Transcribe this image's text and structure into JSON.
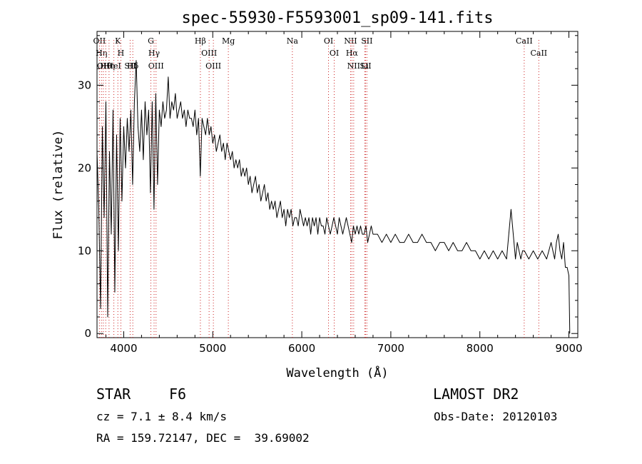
{
  "chart_data": {
    "type": "line",
    "title": "spec-55930-F5593001_sp09-141.fits",
    "xlabel": "Wavelength (Å)",
    "ylabel": "Flux (relative)",
    "xlim": [
      3700,
      9100
    ],
    "ylim": [
      -0.5,
      36.5
    ],
    "xticks": [
      4000,
      5000,
      6000,
      7000,
      8000,
      9000
    ],
    "xtick_labels": [
      "4000",
      "5000",
      "6000",
      "7000",
      "8000",
      "9000"
    ],
    "yticks": [
      0,
      10,
      20,
      30
    ],
    "ytick_labels": [
      "0",
      "10",
      "20",
      "30"
    ],
    "grid": false,
    "legend": "none",
    "series": [
      {
        "color": "#000000",
        "x": [
          3700,
          3720,
          3740,
          3760,
          3780,
          3800,
          3820,
          3840,
          3860,
          3880,
          3900,
          3920,
          3940,
          3960,
          3980,
          4000,
          4020,
          4040,
          4060,
          4080,
          4100,
          4120,
          4140,
          4160,
          4180,
          4200,
          4220,
          4240,
          4260,
          4280,
          4300,
          4320,
          4340,
          4360,
          4380,
          4400,
          4420,
          4440,
          4460,
          4480,
          4500,
          4520,
          4540,
          4560,
          4580,
          4600,
          4620,
          4640,
          4660,
          4680,
          4700,
          4720,
          4740,
          4760,
          4780,
          4800,
          4820,
          4840,
          4860,
          4880,
          4900,
          4920,
          4940,
          4960,
          4980,
          5000,
          5020,
          5040,
          5060,
          5080,
          5100,
          5120,
          5140,
          5160,
          5180,
          5200,
          5220,
          5240,
          5260,
          5280,
          5300,
          5320,
          5340,
          5360,
          5380,
          5400,
          5420,
          5440,
          5460,
          5480,
          5500,
          5520,
          5540,
          5560,
          5580,
          5600,
          5620,
          5640,
          5660,
          5680,
          5700,
          5720,
          5740,
          5760,
          5780,
          5800,
          5820,
          5840,
          5860,
          5880,
          5900,
          5920,
          5940,
          5960,
          5980,
          6000,
          6020,
          6040,
          6060,
          6080,
          6100,
          6120,
          6140,
          6160,
          6180,
          6200,
          6220,
          6240,
          6260,
          6280,
          6300,
          6320,
          6340,
          6360,
          6380,
          6400,
          6420,
          6440,
          6460,
          6480,
          6500,
          6520,
          6540,
          6560,
          6580,
          6600,
          6620,
          6640,
          6660,
          6680,
          6700,
          6720,
          6740,
          6760,
          6780,
          6800,
          6850,
          6900,
          6950,
          7000,
          7050,
          7100,
          7150,
          7200,
          7250,
          7300,
          7350,
          7400,
          7450,
          7500,
          7550,
          7600,
          7650,
          7700,
          7750,
          7800,
          7850,
          7900,
          7950,
          8000,
          8050,
          8100,
          8150,
          8200,
          8250,
          8300,
          8350,
          8400,
          8420,
          8440,
          8460,
          8480,
          8500,
          8550,
          8600,
          8650,
          8700,
          8750,
          8800,
          8820,
          8840,
          8860,
          8880,
          8900,
          8920,
          8940,
          8960,
          8980,
          9000,
          9010
        ],
        "y": [
          22,
          15,
          3,
          25,
          14,
          28,
          2,
          22,
          12,
          27,
          5,
          24,
          10,
          26,
          16,
          25,
          20,
          26,
          22,
          27,
          18,
          28,
          33,
          25,
          22,
          27,
          21,
          28,
          24,
          27,
          17,
          28,
          15,
          29,
          18,
          27,
          25,
          28,
          26,
          27,
          31,
          26,
          28,
          27,
          29,
          26,
          27,
          28,
          26,
          27,
          25,
          27,
          26,
          26,
          25,
          27,
          24,
          26,
          19,
          26,
          25,
          24,
          26,
          24,
          25,
          23,
          24,
          22,
          23,
          24,
          22,
          23,
          21,
          23,
          22,
          21,
          22,
          20,
          21,
          20,
          21,
          19,
          20,
          19,
          20,
          18,
          19,
          17,
          18,
          19,
          17,
          18,
          16,
          17,
          18,
          16,
          17,
          15,
          16,
          15,
          16,
          14,
          15,
          16,
          14,
          15,
          13,
          15,
          14,
          15,
          13,
          14,
          14,
          13,
          15,
          14,
          13,
          14,
          13,
          14,
          12,
          14,
          13,
          14,
          12,
          14,
          13,
          13,
          12,
          14,
          13,
          12,
          13,
          14,
          13,
          12,
          14,
          13,
          12,
          13,
          14,
          13,
          12,
          11,
          13,
          12,
          13,
          12,
          13,
          12,
          12,
          13,
          11,
          12,
          13,
          12,
          12,
          11,
          12,
          11,
          12,
          11,
          11,
          12,
          11,
          11,
          12,
          11,
          11,
          10,
          11,
          11,
          10,
          11,
          10,
          10,
          11,
          10,
          10,
          9,
          10,
          9,
          10,
          9,
          10,
          9,
          15,
          9,
          11,
          10,
          9,
          10,
          10,
          9,
          10,
          9,
          10,
          9,
          11,
          10,
          9,
          11,
          12,
          10,
          9,
          11,
          8,
          8,
          7,
          0
        ]
      }
    ],
    "line_markers": [
      {
        "wavelength": 3727,
        "labels": [
          "OII"
        ]
      },
      {
        "wavelength": 3750,
        "labels": [
          "Hη"
        ]
      },
      {
        "wavelength": 3771,
        "labels": [
          "OII"
        ]
      },
      {
        "wavelength": 3798,
        "labels": [
          "Hθ"
        ]
      },
      {
        "wavelength": 3835,
        "labels": [
          "Hη"
        ]
      },
      {
        "wavelength": 3889,
        "labels": [
          "HeI"
        ]
      },
      {
        "wavelength": 3934,
        "labels": [
          "K"
        ]
      },
      {
        "wavelength": 3968,
        "labels": [
          "H"
        ]
      },
      {
        "wavelength": 4072,
        "labels": [
          "SII"
        ]
      },
      {
        "wavelength": 4102,
        "labels": [
          "Hδ"
        ]
      },
      {
        "wavelength": 4305,
        "labels": [
          "G"
        ]
      },
      {
        "wavelength": 4341,
        "labels": [
          "Hγ"
        ]
      },
      {
        "wavelength": 4363,
        "labels": [
          "OIII"
        ]
      },
      {
        "wavelength": 4861,
        "labels": [
          "Hβ"
        ]
      },
      {
        "wavelength": 4959,
        "labels": [
          "OIII"
        ]
      },
      {
        "wavelength": 5007,
        "labels": [
          "OIII"
        ]
      },
      {
        "wavelength": 5175,
        "labels": [
          "Mg"
        ]
      },
      {
        "wavelength": 5894,
        "labels": [
          "Na"
        ]
      },
      {
        "wavelength": 6300,
        "labels": [
          "OI"
        ]
      },
      {
        "wavelength": 6364,
        "labels": [
          "OI"
        ]
      },
      {
        "wavelength": 6548,
        "labels": [
          "NII"
        ]
      },
      {
        "wavelength": 6563,
        "labels": [
          "Hα"
        ]
      },
      {
        "wavelength": 6583,
        "labels": [
          "NII"
        ]
      },
      {
        "wavelength": 6707,
        "labels": [
          "Li"
        ]
      },
      {
        "wavelength": 6716,
        "labels": [
          "SII"
        ]
      },
      {
        "wavelength": 6731,
        "labels": [
          "SII"
        ]
      },
      {
        "wavelength": 8498,
        "labels": [
          "CaII"
        ]
      },
      {
        "wavelength": 8662,
        "labels": [
          "CaII"
        ]
      }
    ]
  },
  "info": {
    "object_class": "STAR",
    "subclass": "F6",
    "survey": "LAMOST DR2",
    "cz": "cz = 7.1 ± 8.4 km/s",
    "obs_date": "Obs-Date: 20120103",
    "radec": "RA = 159.72147, DEC =  39.69002"
  }
}
